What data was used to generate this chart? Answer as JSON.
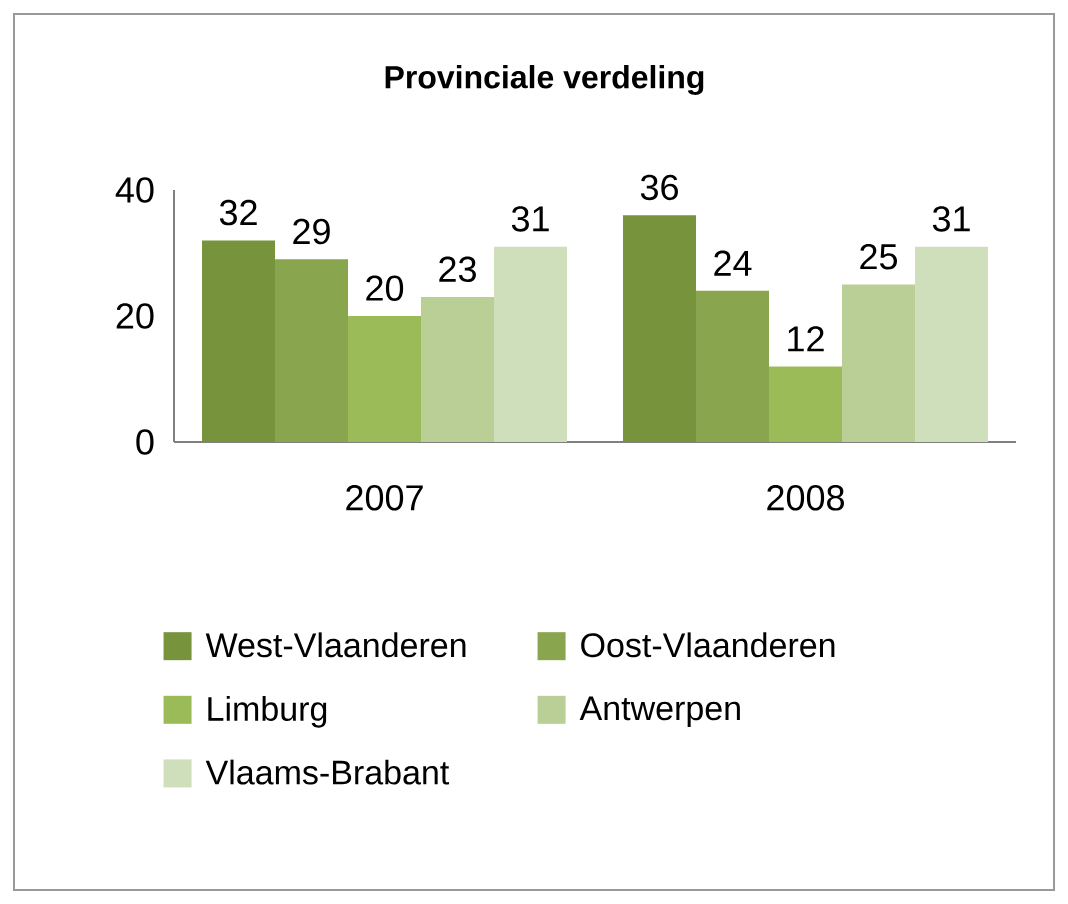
{
  "chart_data": {
    "type": "bar",
    "title": "Provinciale verdeling",
    "categories": [
      "2007",
      "2008"
    ],
    "series": [
      {
        "name": "West-Vlaanderen",
        "color": "#77933c",
        "values": [
          32,
          36
        ]
      },
      {
        "name": "Oost-Vlaanderen",
        "color": "#89a54e",
        "values": [
          29,
          24
        ]
      },
      {
        "name": "Limburg",
        "color": "#9bbb59",
        "values": [
          20,
          12
        ]
      },
      {
        "name": "Antwerpen",
        "color": "#b9cf96",
        "values": [
          23,
          25
        ]
      },
      {
        "name": "Vlaams-Brabant",
        "color": "#d0dfbb",
        "values": [
          31,
          31
        ]
      }
    ],
    "ylim": [
      0,
      40
    ],
    "yticks": [
      0,
      20,
      40
    ],
    "data_labels": true,
    "grid": false,
    "legend": "bottom"
  }
}
